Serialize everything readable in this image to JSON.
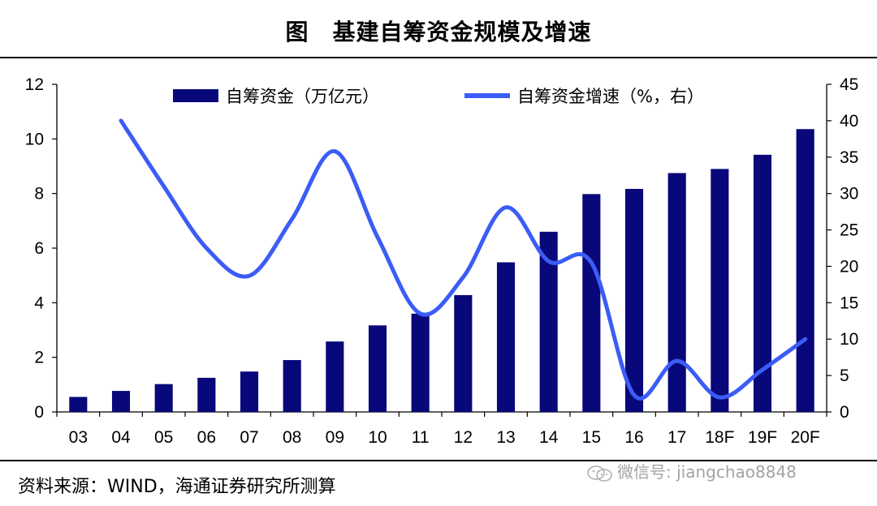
{
  "header": {
    "title": "图　基建自筹资金规模及增速"
  },
  "footer": {
    "source": "资料来源：WIND，海通证券研究所测算"
  },
  "watermark": {
    "text": "微信号: jiangchao8848",
    "icon": "wechat-icon"
  },
  "chart_data": {
    "type": "bar+line",
    "categories": [
      "03",
      "04",
      "05",
      "06",
      "07",
      "08",
      "09",
      "10",
      "11",
      "12",
      "13",
      "14",
      "15",
      "16",
      "17",
      "18F",
      "19F",
      "20F"
    ],
    "series": [
      {
        "name": "自筹资金（万亿元）",
        "type": "bar",
        "axis": "left",
        "color": "#08087a",
        "values": [
          0.55,
          0.77,
          1.02,
          1.25,
          1.48,
          1.9,
          2.58,
          3.17,
          3.6,
          4.28,
          5.48,
          6.6,
          7.98,
          8.17,
          8.75,
          8.9,
          9.42,
          10.36
        ]
      },
      {
        "name": "自筹资金增速（%，右）",
        "type": "line",
        "axis": "right",
        "color": "#3b5cf6",
        "values": [
          null,
          40,
          31,
          22.5,
          18.7,
          26.5,
          35.8,
          24,
          13.5,
          18.5,
          28.1,
          20.7,
          20.5,
          2.3,
          7,
          2,
          5.8,
          10
        ]
      }
    ],
    "y_left": {
      "min": 0,
      "max": 12,
      "ticks": [
        0,
        2,
        4,
        6,
        8,
        10,
        12
      ]
    },
    "y_right": {
      "min": 0,
      "max": 45,
      "ticks": [
        0,
        5,
        10,
        15,
        20,
        25,
        30,
        35,
        40,
        45
      ]
    },
    "legend": {
      "placement": "top"
    },
    "grid": false
  }
}
